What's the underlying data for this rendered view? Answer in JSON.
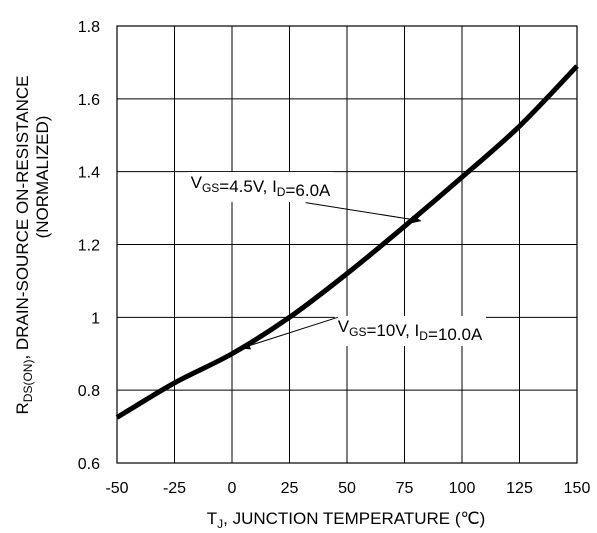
{
  "chart_data": {
    "type": "line",
    "title": "",
    "xlabel": {
      "main": "T",
      "sub": "J",
      "rest": ", JUNCTION TEMPERATURE (℃)"
    },
    "ylabel": {
      "line1_main": "R",
      "line1_sub": "DS(ON)",
      "line1_rest": ", DRAIN-SOURCE ON-RESISTANCE",
      "line2": "(NORMALIZED)"
    },
    "xlim": [
      -50,
      150
    ],
    "ylim": [
      0.6,
      1.8
    ],
    "x_ticks": [
      "-50",
      "-25",
      "0",
      "25",
      "50",
      "75",
      "100",
      "125",
      "150"
    ],
    "x_tick_values": [
      -50,
      -25,
      0,
      25,
      50,
      75,
      100,
      125,
      150
    ],
    "y_ticks": [
      "0.6",
      "0.8",
      "1",
      "1.2",
      "1.4",
      "1.6",
      "1.8"
    ],
    "y_tick_values": [
      0.6,
      0.8,
      1.0,
      1.2,
      1.4,
      1.6,
      1.8
    ],
    "grid": true,
    "legend": "none",
    "series": [
      {
        "x": [
          -50,
          -25,
          0,
          25,
          50,
          75,
          100,
          125,
          150
        ],
        "y": [
          0.725,
          0.82,
          0.9,
          1.0,
          1.12,
          1.25,
          1.385,
          1.525,
          1.69
        ]
      }
    ],
    "annotations": [
      {
        "parts": [
          {
            "t": "V",
            "sub": false
          },
          {
            "t": "GS",
            "sub": true
          },
          {
            "t": "=4.5V, I",
            "sub": false
          },
          {
            "t": "D",
            "sub": true
          },
          {
            "t": "=6.0A",
            "sub": false
          }
        ],
        "label_at": [
          -18,
          1.355
        ],
        "arrow_from": [
          32,
          1.315
        ],
        "arrow_to": [
          82,
          1.265
        ]
      },
      {
        "parts": [
          {
            "t": "V",
            "sub": false
          },
          {
            "t": "GS",
            "sub": true
          },
          {
            "t": "=10V, I",
            "sub": false
          },
          {
            "t": "D",
            "sub": true
          },
          {
            "t": "=10.0A",
            "sub": false
          }
        ],
        "label_at": [
          46,
          0.96
        ],
        "arrow_from": [
          46,
          1.0
        ],
        "arrow_to": [
          4,
          0.915
        ]
      }
    ]
  }
}
